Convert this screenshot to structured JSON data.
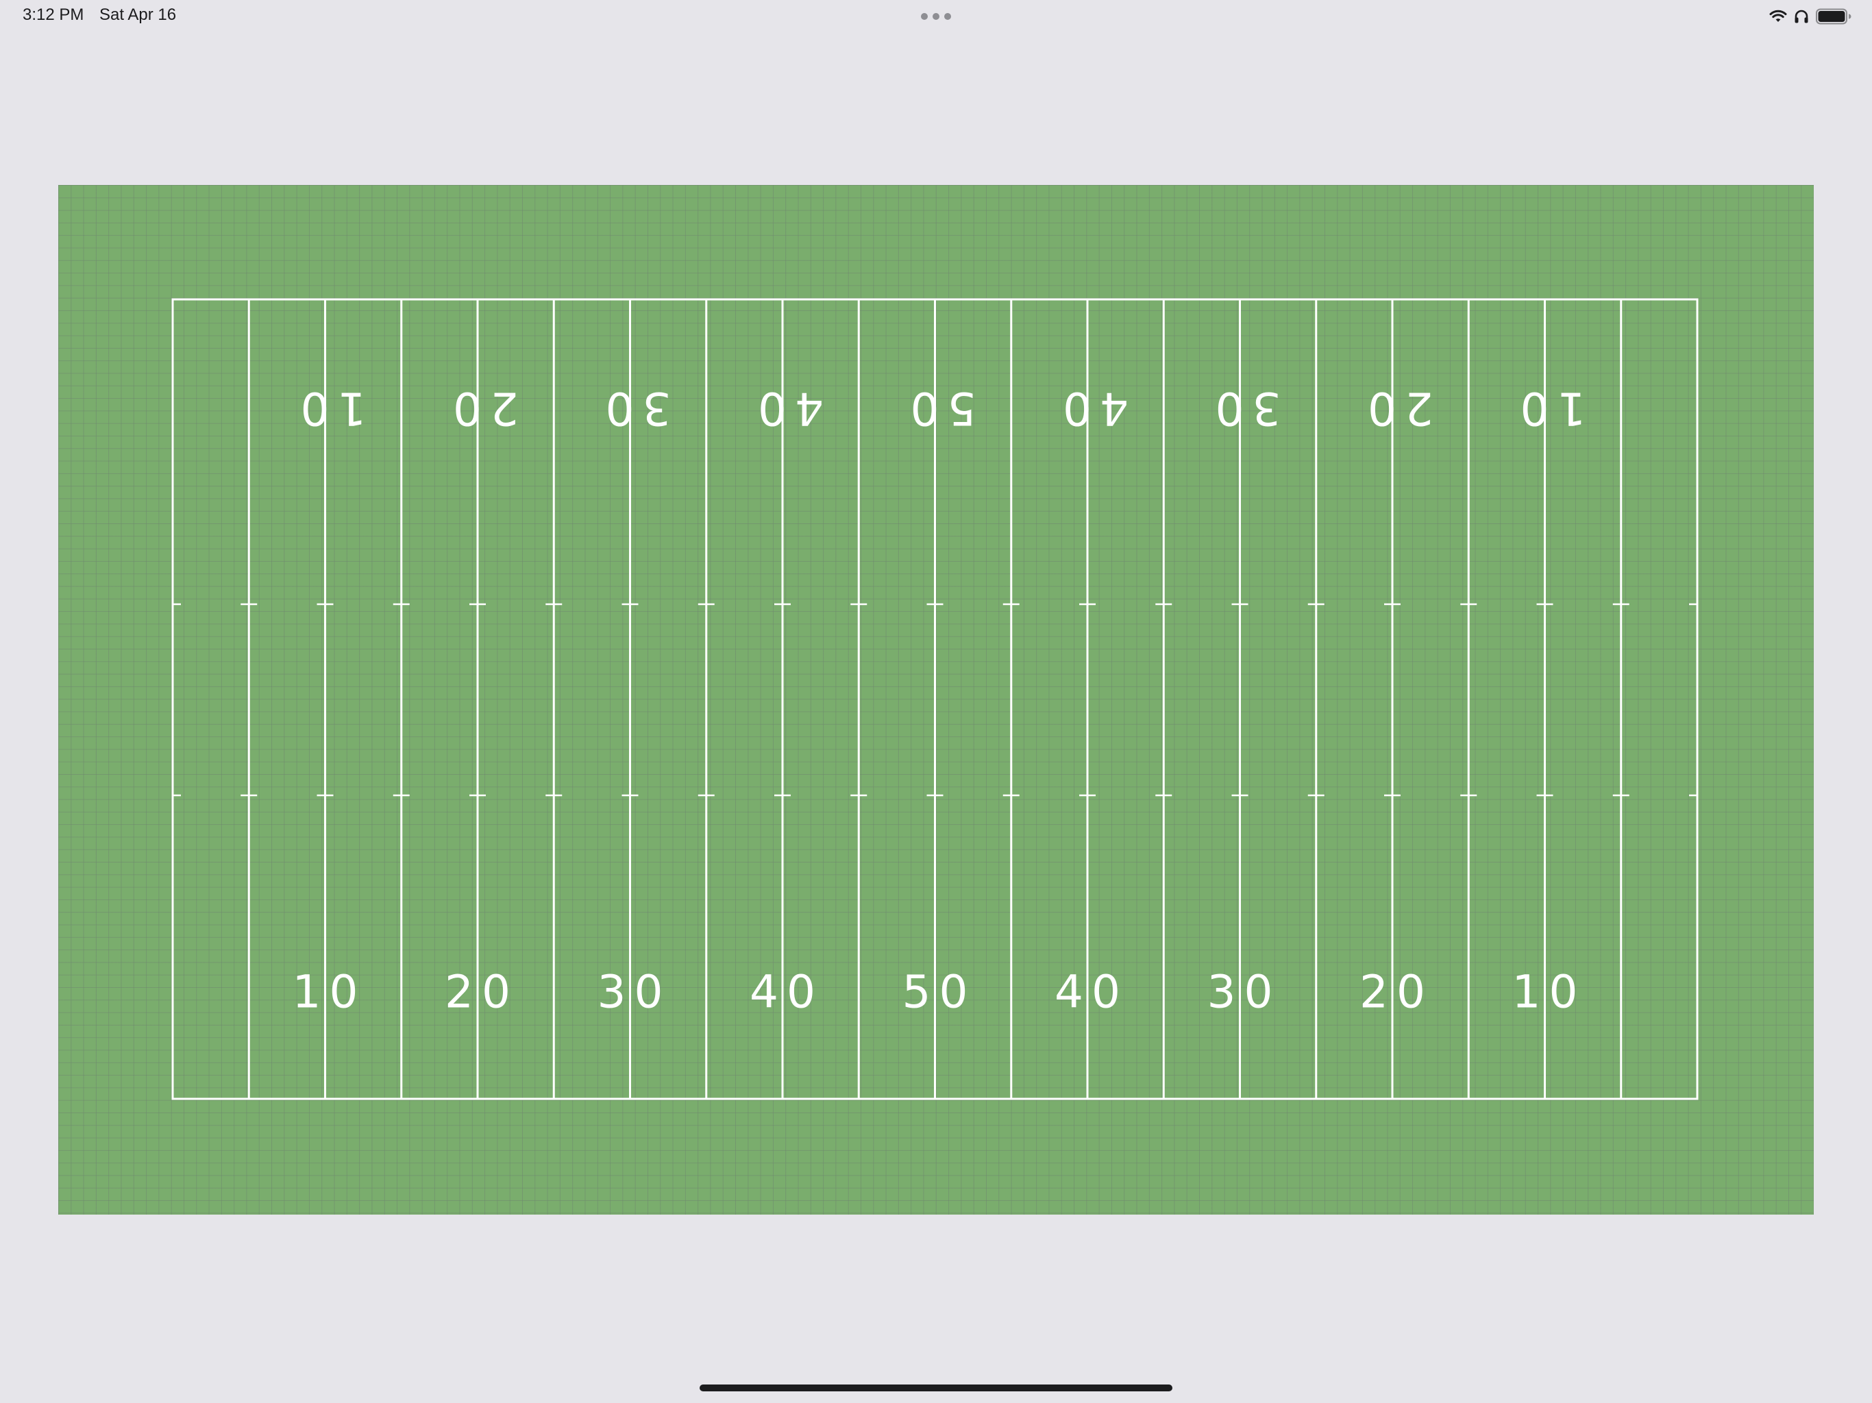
{
  "status_bar": {
    "time": "3:12 PM",
    "date": "Sat Apr 16",
    "icons": [
      "wifi-icon",
      "headphones-icon",
      "battery-icon"
    ],
    "battery_level": 1.0
  },
  "field": {
    "surface_color": "#7aad6d",
    "line_color": "#ffffff",
    "yard_numbers_top": [
      "10",
      "20",
      "30",
      "40",
      "50",
      "40",
      "30",
      "20",
      "10"
    ],
    "yard_numbers_bottom": [
      "10",
      "20",
      "30",
      "40",
      "50",
      "40",
      "30",
      "20",
      "10"
    ]
  }
}
